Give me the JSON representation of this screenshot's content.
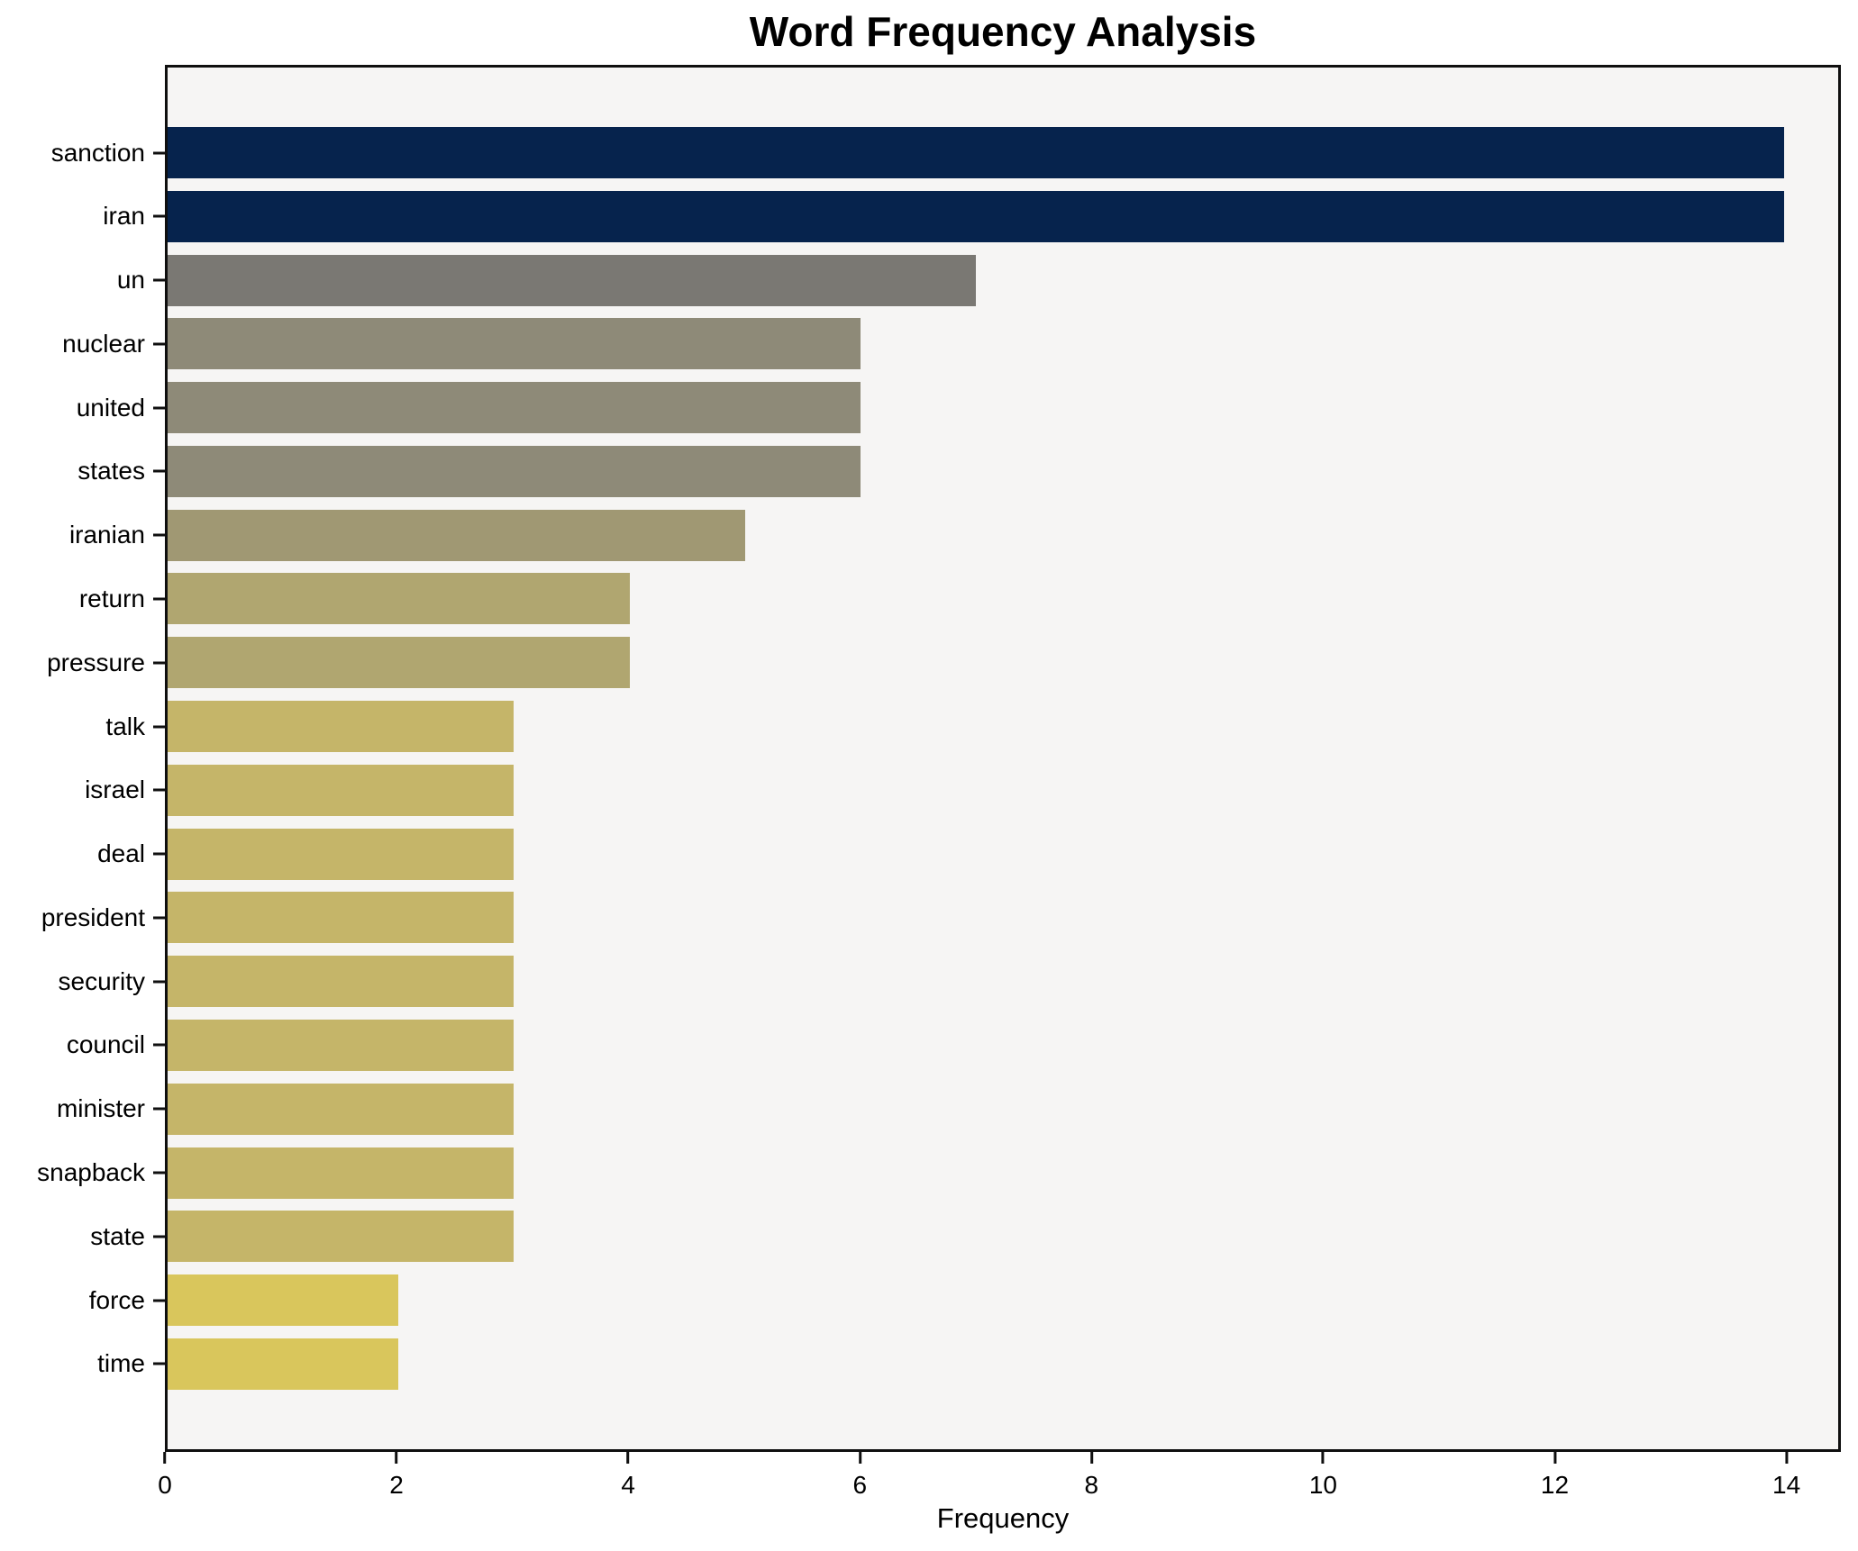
{
  "title": "Word Frequency Analysis",
  "chart_data": {
    "type": "bar",
    "orientation": "horizontal",
    "title": "Word Frequency Analysis",
    "xlabel": "Frequency",
    "ylabel": "",
    "categories": [
      "sanction",
      "iran",
      "un",
      "nuclear",
      "united",
      "states",
      "iranian",
      "return",
      "pressure",
      "talk",
      "israel",
      "deal",
      "president",
      "security",
      "council",
      "minister",
      "snapback",
      "state",
      "force",
      "time"
    ],
    "values": [
      14,
      14,
      7,
      6,
      6,
      6,
      5,
      4,
      4,
      3,
      3,
      3,
      3,
      3,
      3,
      3,
      3,
      3,
      2,
      2
    ],
    "bar_colors": [
      "#06234d",
      "#06234d",
      "#7a7873",
      "#8e8a78",
      "#8e8a78",
      "#8e8a78",
      "#a09873",
      "#b0a670",
      "#b0a670",
      "#c5b569",
      "#c5b569",
      "#c5b569",
      "#c5b569",
      "#c5b569",
      "#c5b569",
      "#c5b569",
      "#c5b569",
      "#c5b569",
      "#d9c65c",
      "#d9c65c"
    ],
    "xlim": [
      0,
      14.47
    ],
    "xticks": [
      0,
      2,
      4,
      6,
      8,
      10,
      12,
      14
    ],
    "grid": false,
    "legend": "none",
    "plot_background": "#f6f5f4",
    "figure_background": "#ffffff",
    "spine_color": "#0f0f0f"
  }
}
